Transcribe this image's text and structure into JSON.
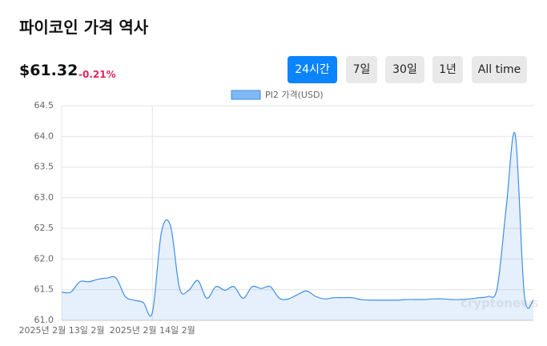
{
  "header": {
    "title": "파이코인 가격 역사",
    "price": "$61.32",
    "change": "-0.21%"
  },
  "buttons": {
    "labels": [
      "24시간",
      "7일",
      "30일",
      "1년",
      "All time"
    ],
    "active": 0
  },
  "chart_data": {
    "type": "area",
    "series": [
      {
        "name": "PI2 가격(USD)",
        "color": "#3d8ee8",
        "values": [
          61.46,
          61.46,
          61.63,
          61.63,
          61.67,
          61.69,
          61.69,
          61.39,
          61.33,
          61.29,
          61.13,
          62.44,
          62.54,
          61.52,
          61.49,
          61.65,
          61.36,
          61.55,
          61.49,
          61.55,
          61.36,
          61.55,
          61.52,
          61.55,
          61.36,
          61.35,
          61.42,
          61.48,
          61.39,
          61.35,
          61.37,
          61.37,
          61.37,
          61.34,
          61.33,
          61.33,
          61.33,
          61.33,
          61.34,
          61.34,
          61.34,
          61.35,
          61.35,
          61.34,
          61.34,
          61.35,
          61.37,
          61.39,
          61.52,
          62.83,
          64.03,
          61.42,
          61.33
        ]
      }
    ],
    "categories": [
      "2025년 2월 13일 2월",
      null,
      null,
      null,
      null,
      null,
      null,
      null,
      null,
      null,
      "2025년 2월 14일 2월",
      null,
      null,
      null,
      null,
      null,
      null,
      null,
      null,
      null,
      null,
      null,
      null,
      null,
      null,
      null,
      null,
      null,
      null,
      null,
      null,
      null,
      null,
      null,
      null,
      null,
      null,
      null,
      null,
      null,
      null,
      null,
      null,
      null,
      null,
      null,
      null,
      null,
      null,
      null,
      null,
      null,
      null
    ],
    "ylim": [
      61.0,
      64.5
    ],
    "yticks": [
      {
        "value": 61.0,
        "label": "61.0"
      },
      61.5,
      {
        "value": 62.0,
        "label": "62.0"
      },
      62.5,
      {
        "value": 63.0,
        "label": "63.0"
      },
      63.5,
      {
        "value": 64.0,
        "label": "64.0"
      },
      64.5
    ],
    "grid": true,
    "legend": "top",
    "watermark": "cryptonews"
  }
}
